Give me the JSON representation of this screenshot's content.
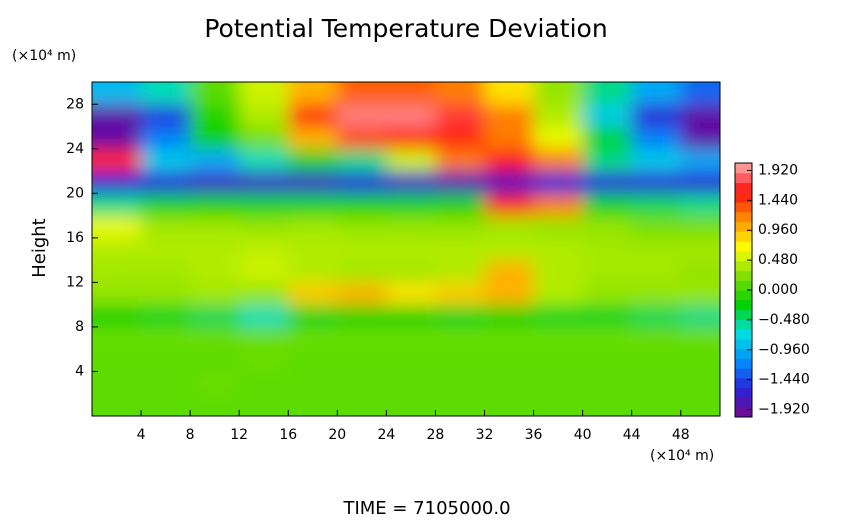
{
  "chart_data": {
    "type": "heatmap",
    "title": "Potential Temperature Deviation",
    "y_unit_label": "(×10⁴ m)",
    "x_unit_label": "(×10⁴ m)",
    "y_label": "Height",
    "footer": "TIME = 7105000.0",
    "xlim": [
      0,
      51.2
    ],
    "ylim": [
      0,
      30
    ],
    "xticks": [
      4,
      8,
      12,
      16,
      20,
      24,
      28,
      32,
      36,
      40,
      44,
      48
    ],
    "yticks": [
      4,
      8,
      12,
      16,
      20,
      24,
      28
    ],
    "xbins": [
      0,
      4,
      8,
      12,
      16,
      20,
      24,
      28,
      32,
      36,
      40,
      44,
      48,
      51.2
    ],
    "ybins": [
      0,
      2,
      4,
      6,
      8,
      10,
      12,
      14,
      16,
      18,
      20,
      22,
      24,
      26,
      28,
      30
    ],
    "z": [
      [
        0.1,
        0.1,
        0.1,
        0.1,
        0.1,
        0.1,
        0.1,
        0.1,
        0.1,
        0.1,
        0.1,
        0.1,
        0.1
      ],
      [
        0.1,
        0.1,
        0.15,
        0.1,
        0.1,
        0.1,
        0.1,
        0.1,
        0.1,
        0.1,
        0.1,
        0.1,
        0.1
      ],
      [
        0.1,
        0.1,
        0.1,
        0.15,
        0.1,
        0.1,
        0.1,
        0.1,
        0.1,
        0.1,
        0.1,
        0.1,
        0.1
      ],
      [
        0.15,
        0.15,
        0.15,
        0.15,
        0.15,
        0.15,
        0.15,
        0.15,
        0.15,
        0.15,
        0.15,
        0.15,
        0.15
      ],
      [
        -0.2,
        -0.3,
        -0.4,
        -0.6,
        -0.3,
        -0.2,
        -0.2,
        -0.3,
        -0.2,
        -0.3,
        -0.3,
        -0.4,
        -0.5
      ],
      [
        0.3,
        0.3,
        0.35,
        0.3,
        0.9,
        1.0,
        0.8,
        0.9,
        1.0,
        0.4,
        0.3,
        0.3,
        0.3
      ],
      [
        0.35,
        0.35,
        0.4,
        0.5,
        0.4,
        0.35,
        0.35,
        0.4,
        1.0,
        0.4,
        0.35,
        0.35,
        0.3
      ],
      [
        0.4,
        0.4,
        0.4,
        0.45,
        0.4,
        0.4,
        0.4,
        0.4,
        0.4,
        0.4,
        0.35,
        0.35,
        0.35
      ],
      [
        0.6,
        0.35,
        0.35,
        0.3,
        0.35,
        0.3,
        0.3,
        0.3,
        0.35,
        0.3,
        0.3,
        0.2,
        0.2
      ],
      [
        -0.5,
        -0.3,
        -0.2,
        -0.3,
        -0.3,
        -0.2,
        -0.3,
        -0.2,
        1.5,
        1.2,
        -0.3,
        -0.4,
        -0.5
      ],
      [
        -1.6,
        -1.6,
        -1.7,
        -1.7,
        -1.7,
        -1.6,
        -1.7,
        -1.8,
        -1.8,
        -1.6,
        -1.6,
        -1.6,
        -1.6
      ],
      [
        1.5,
        -0.8,
        -1.0,
        -0.6,
        -0.3,
        -0.5,
        0.5,
        1.2,
        1.6,
        1.2,
        -0.5,
        -0.8,
        -1.0
      ],
      [
        -1.9,
        -1.2,
        -0.2,
        0.2,
        1.0,
        1.4,
        1.5,
        1.5,
        1.2,
        0.6,
        -0.3,
        -1.2,
        -1.9
      ],
      [
        -1.9,
        -1.5,
        -0.1,
        0.4,
        1.5,
        1.9,
        1.9,
        1.7,
        1.2,
        0.4,
        -0.8,
        -1.6,
        -1.9
      ],
      [
        -0.9,
        -0.6,
        0.1,
        0.5,
        1.0,
        1.3,
        1.3,
        1.2,
        0.8,
        0.3,
        -0.5,
        -1.0,
        -1.3
      ]
    ],
    "clim": [
      -2.04,
      2.04
    ],
    "colors": [
      "#7a0a90",
      "#2a22d8",
      "#0090ff",
      "#00e0e0",
      "#00d000",
      "#80e000",
      "#ffff00",
      "#ff9000",
      "#ff1010",
      "#ffb0b0"
    ],
    "cticks": [
      {
        "value": 1.92,
        "label": "1.920"
      },
      {
        "value": 1.44,
        "label": "1.440"
      },
      {
        "value": 0.96,
        "label": "0.960"
      },
      {
        "value": 0.48,
        "label": "0.480"
      },
      {
        "value": 0,
        "label": "0.000"
      },
      {
        "value": -0.48,
        "label": "−0.480"
      },
      {
        "value": -0.96,
        "label": "−0.960"
      },
      {
        "value": -1.44,
        "label": "−1.440"
      },
      {
        "value": -1.92,
        "label": "−1.920"
      }
    ]
  }
}
